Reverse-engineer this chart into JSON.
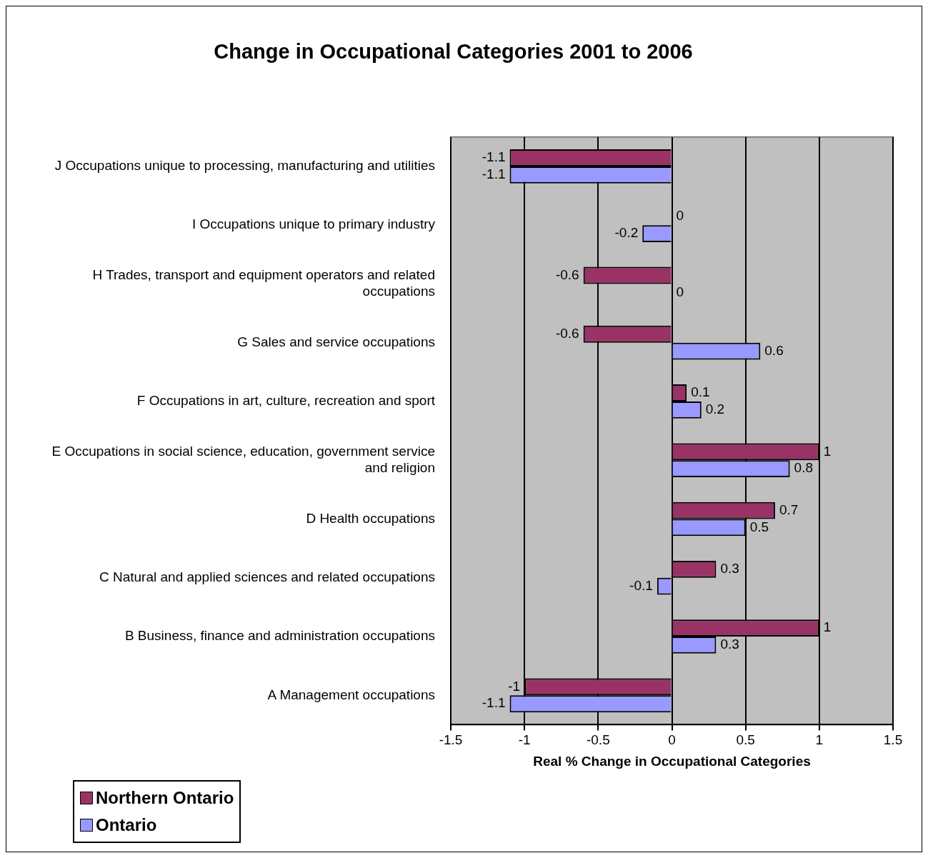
{
  "chart_data": {
    "type": "bar",
    "orientation": "horizontal",
    "title": "Change in Occupational Categories 2001 to 2006",
    "xlabel": "Real % Change in Occupational Categories",
    "categories": [
      "J Occupations unique to processing, manufacturing and utilities",
      "I Occupations unique to primary industry",
      "H Trades, transport and equipment operators and related occupations",
      "G Sales and service occupations",
      "F Occupations in art, culture, recreation and sport",
      "E Occupations in social science, education, government service and religion",
      "D Health occupations",
      "C Natural and applied sciences and related occupations",
      "B Business, finance and administration occupations",
      "A Management occupations"
    ],
    "series": [
      {
        "name": "Northern Ontario",
        "color": "#993366",
        "values": [
          -1.1,
          0,
          -0.6,
          -0.6,
          0.1,
          1,
          0.7,
          0.3,
          1,
          -1
        ]
      },
      {
        "name": "Ontario",
        "color": "#9999ff",
        "values": [
          -1.1,
          -0.2,
          0,
          0.6,
          0.2,
          0.8,
          0.5,
          -0.1,
          0.3,
          -1.1
        ]
      }
    ],
    "xlim": [
      -1.5,
      1.5
    ],
    "xticks": [
      -1.5,
      -1,
      -0.5,
      0,
      0.5,
      1,
      1.5
    ],
    "grid": "x",
    "data_labels": true,
    "legend": "bottom left"
  }
}
